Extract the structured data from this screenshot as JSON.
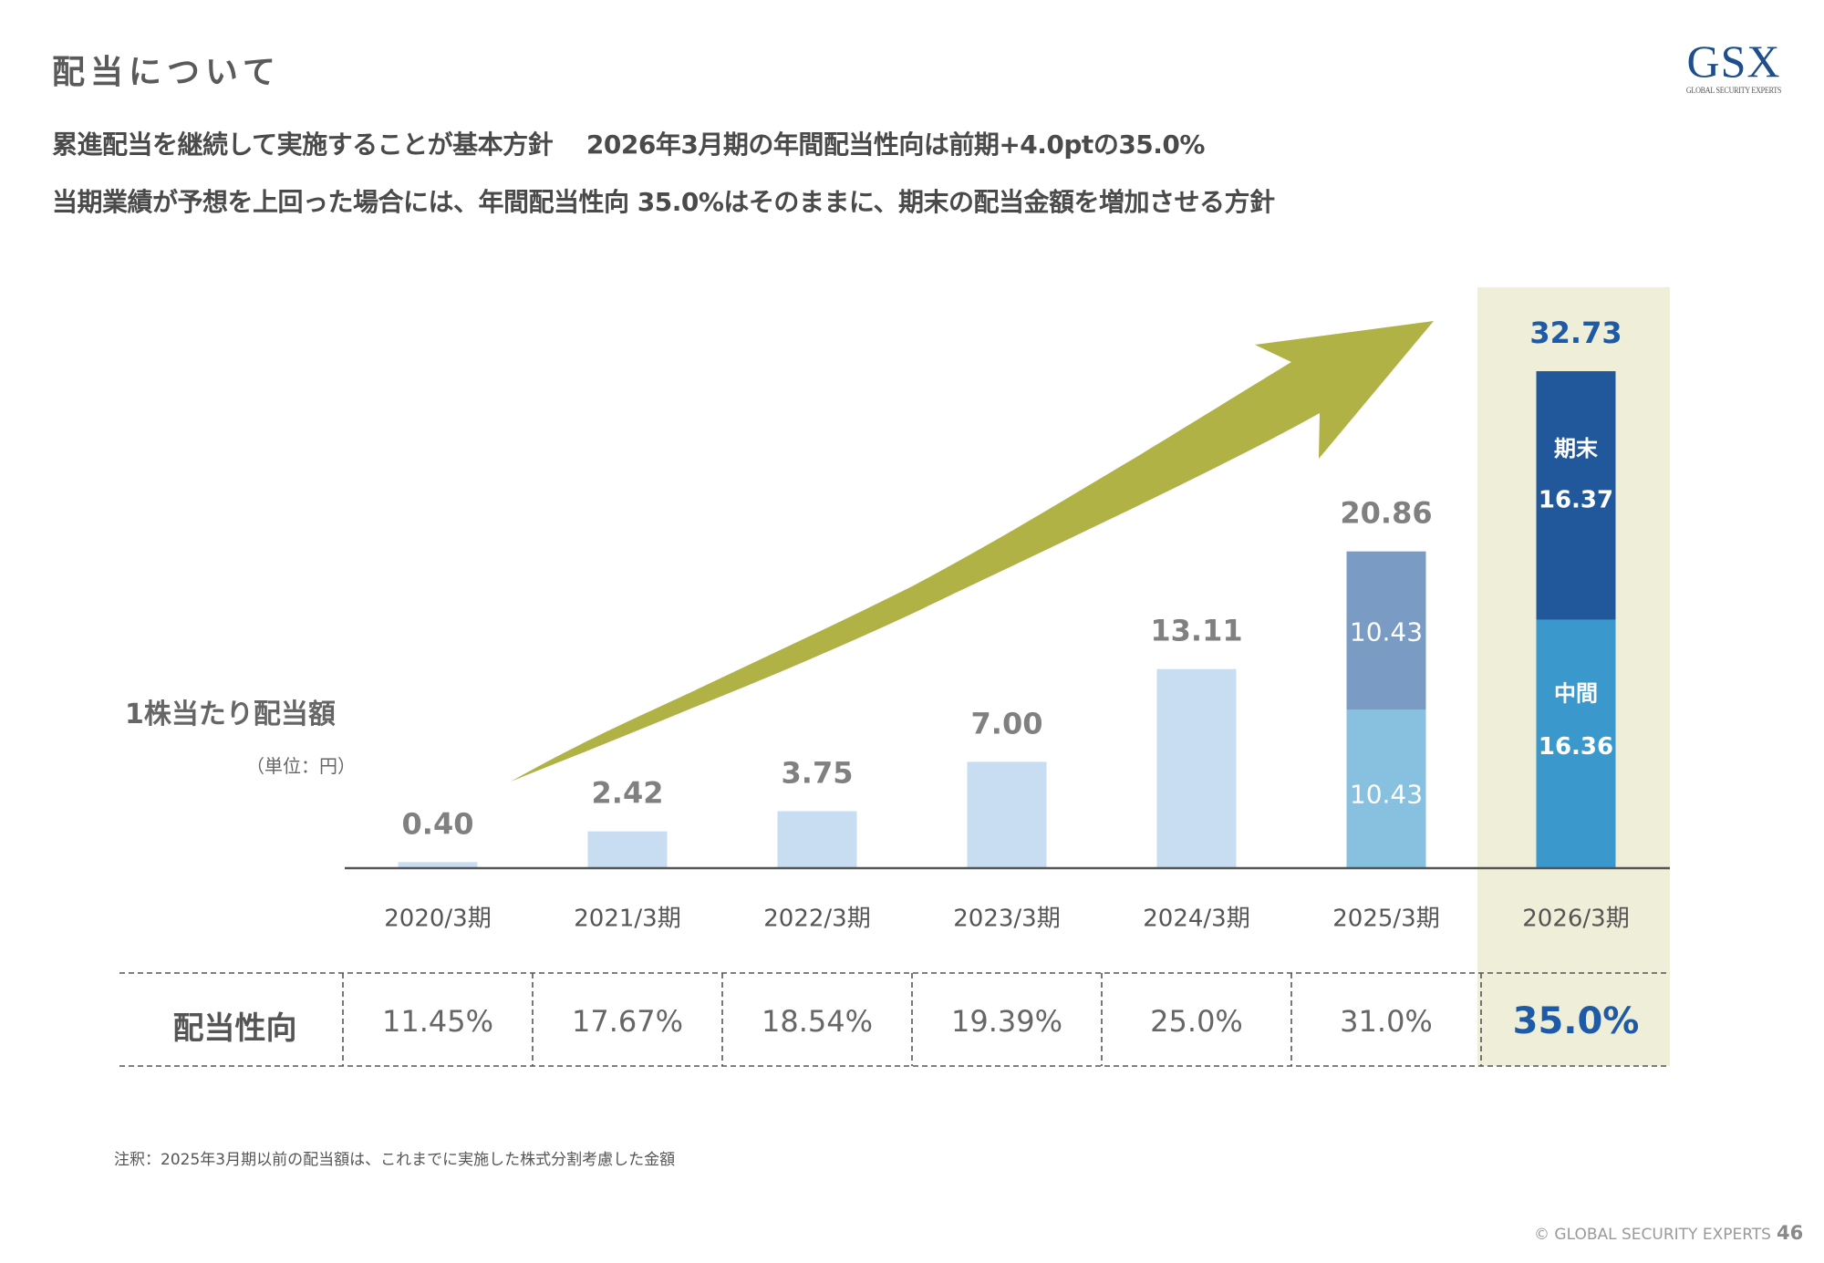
{
  "header": {
    "title": "配当について",
    "subtitle_line1": "累進配当を継続して実施することが基本方針　 2026年3月期の年間配当性向は前期+4.0ptの35.0%",
    "subtitle_line2": "当期業績が予想を上回った場合には、年間配当性向 35.0%はそのままに、期末の配当金額を増加させる方針",
    "logo_mark": "GSX",
    "logo_subtext": "GLOBAL SECURITY EXPERTS"
  },
  "chart_data": {
    "type": "bar",
    "title": "1株当たり配当額",
    "unit_label": "（単位：円）",
    "categories": [
      "2020/3期",
      "2021/3期",
      "2022/3期",
      "2023/3期",
      "2024/3期",
      "2025/3期",
      "2026/3期"
    ],
    "totals": [
      0.4,
      2.42,
      3.75,
      7.0,
      13.11,
      20.86,
      32.73
    ],
    "total_labels": [
      "0.40",
      "2.42",
      "3.75",
      "7.00",
      "13.11",
      "20.86",
      "32.73"
    ],
    "stacked": {
      "2025/3期": {
        "interim": 10.43,
        "interim_label": "10.43",
        "year_end": 10.43,
        "year_end_label": "10.43"
      },
      "2026/3期": {
        "interim": 16.36,
        "interim_label": "16.36",
        "interim_name": "中間",
        "year_end": 16.37,
        "year_end_label": "16.37",
        "year_end_name": "期末"
      }
    },
    "highlighted_category": "2026/3期",
    "trend_arrow": true,
    "colors": {
      "bar": "#c8dcf2",
      "bar_2025_interim": "#88c0e0",
      "bar_2025_year_end": "#7a9cc4",
      "bar_2026_interim": "#3a98cc",
      "bar_2026_year_end": "#21589c",
      "highlight_bg": "#efeed8",
      "arrow": "#b1b246",
      "axis": "#555555",
      "label": "#808080",
      "highlight_text": "#1f5aa6"
    },
    "payout_ratio": {
      "label": "配当性向",
      "values": [
        "11.45%",
        "17.67%",
        "18.54%",
        "19.39%",
        "25.0%",
        "31.0%",
        "35.0%"
      ]
    }
  },
  "footer": {
    "note": "注釈：2025年3月期以前の配当額は、これまでに実施した株式分割考慮した金額",
    "copyright": "© GLOBAL SECURITY EXPERTS",
    "page_number": "46"
  }
}
